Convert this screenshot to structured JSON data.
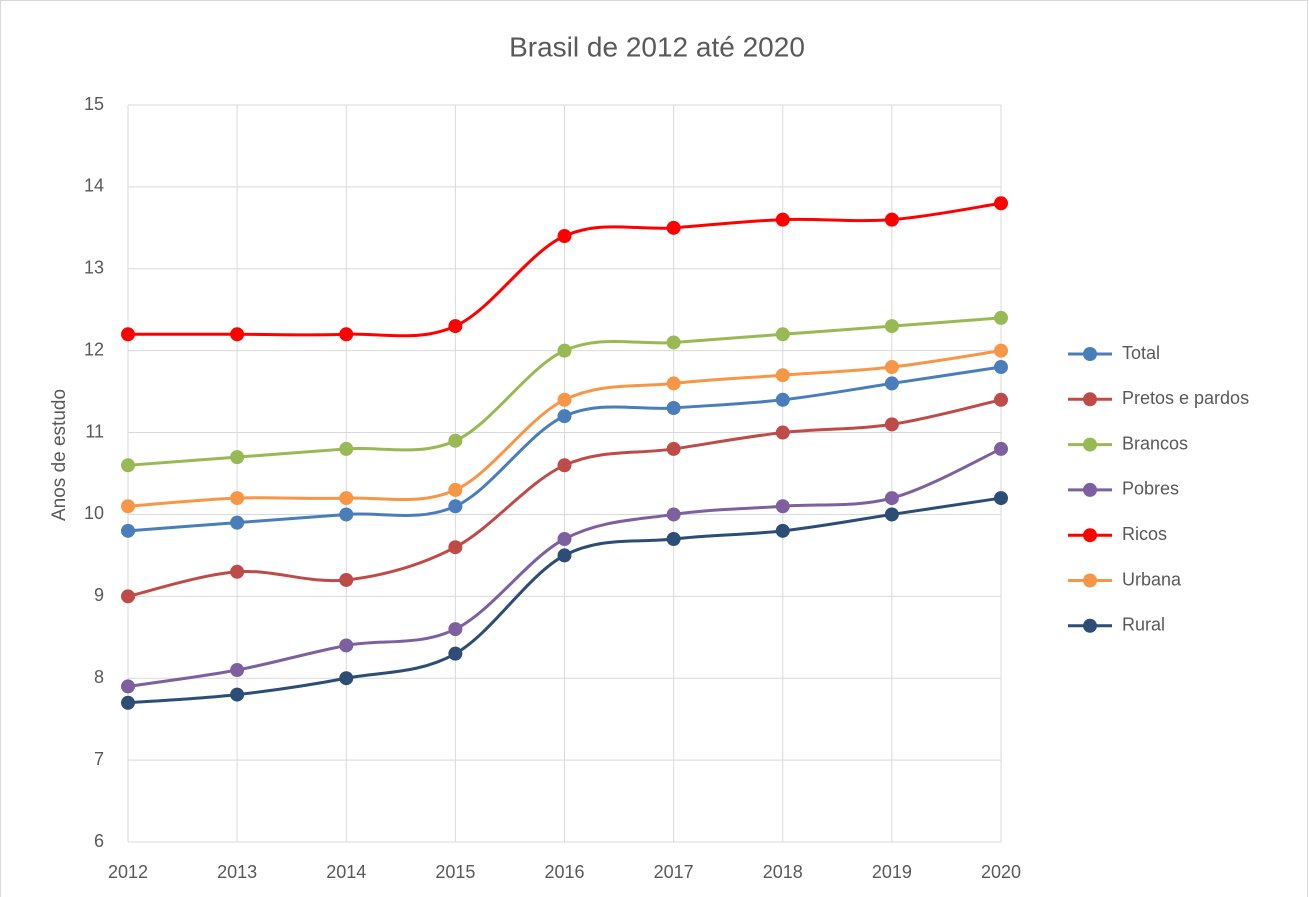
{
  "chart_data": {
    "type": "line",
    "title": "Brasil de 2012 até 2020",
    "y_label": "Anos de estudo",
    "categories": [
      "2012",
      "2013",
      "2014",
      "2015",
      "2016",
      "2017",
      "2018",
      "2019",
      "2020"
    ],
    "series": [
      {
        "name": "Total",
        "color": "#4a7ebb",
        "values": [
          9.8,
          9.9,
          10.0,
          10.1,
          11.2,
          11.3,
          11.4,
          11.6,
          11.8
        ]
      },
      {
        "name": "Pretos e pardos",
        "color": "#be4b48",
        "values": [
          9.0,
          9.3,
          9.2,
          9.6,
          10.6,
          10.8,
          11.0,
          11.1,
          11.4
        ]
      },
      {
        "name": "Brancos",
        "color": "#98b954",
        "values": [
          10.6,
          10.7,
          10.8,
          10.9,
          12.0,
          12.1,
          12.2,
          12.3,
          12.4
        ]
      },
      {
        "name": "Pobres",
        "color": "#7d60a0",
        "values": [
          7.9,
          8.1,
          8.4,
          8.6,
          9.7,
          10.0,
          10.1,
          10.2,
          10.8
        ]
      },
      {
        "name": "Ricos",
        "color": "#ff0000",
        "values": [
          12.2,
          12.2,
          12.2,
          12.3,
          13.4,
          13.5,
          13.6,
          13.6,
          13.8
        ]
      },
      {
        "name": "Urbana",
        "color": "#f79646",
        "values": [
          10.1,
          10.2,
          10.2,
          10.3,
          11.4,
          11.6,
          11.7,
          11.8,
          12.0
        ]
      },
      {
        "name": "Rural",
        "color": "#2c4d75",
        "values": [
          7.7,
          7.8,
          8.0,
          8.3,
          9.5,
          9.7,
          9.8,
          10.0,
          10.2
        ]
      }
    ],
    "ylim": [
      6,
      15
    ],
    "yticks": [
      6,
      7,
      8,
      9,
      10,
      11,
      12,
      13,
      14,
      15
    ],
    "grid": true,
    "smooth": true,
    "legend": "right"
  }
}
